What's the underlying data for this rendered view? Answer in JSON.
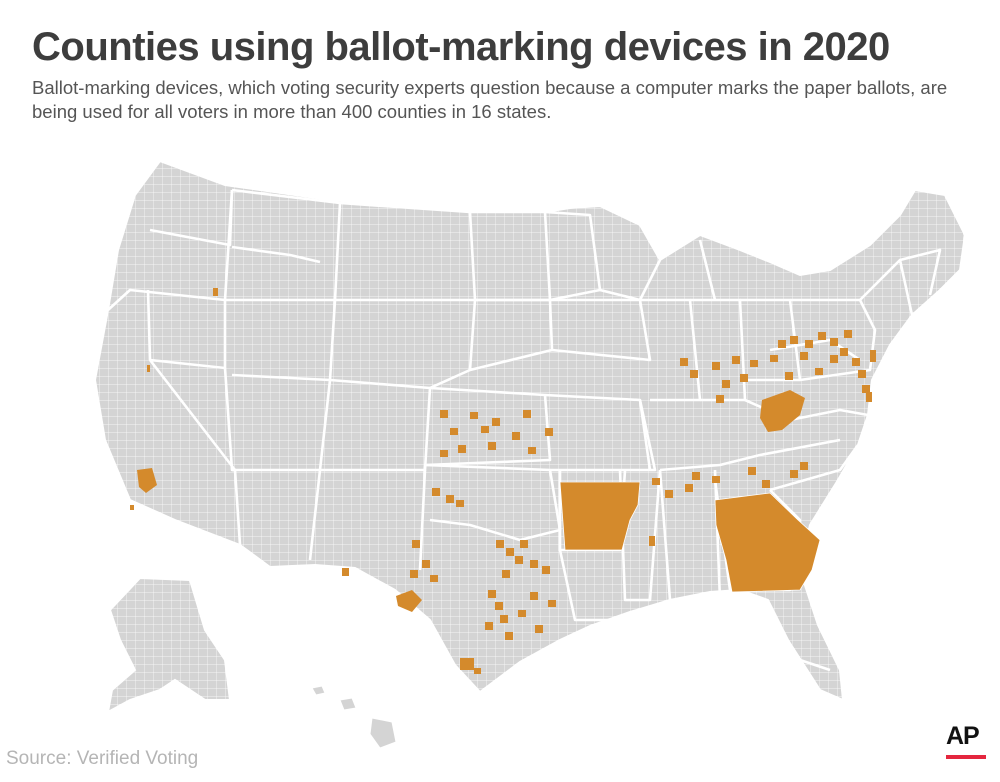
{
  "header": {
    "title": "Counties using ballot-marking devices in 2020",
    "subtitle": "Ballot-marking devices, which voting security experts question because a computer marks the paper ballots, are being used for all voters in more than 400 counties in 16 states."
  },
  "footer": {
    "source": "Source: Verified Voting",
    "logo_text": "AP"
  },
  "legend_colors": {
    "uses_bmd": "#d48a2c",
    "other": "#d4d4d4",
    "border": "#ffffff",
    "logo_bar": "#e4263e"
  }
}
